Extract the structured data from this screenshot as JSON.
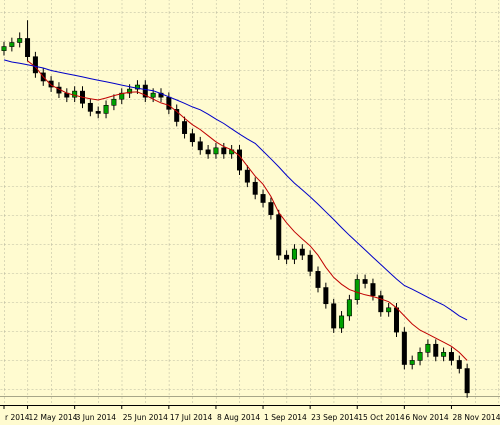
{
  "chart_data": {
    "type": "candlestick",
    "categories": [
      "r 2014",
      null,
      null,
      "12 May 2014",
      null,
      null,
      null,
      null,
      null,
      "3 Jun 2014",
      null,
      null,
      null,
      null,
      null,
      "25 Jun 2014",
      null,
      null,
      null,
      null,
      null,
      "17 Jul 2014",
      null,
      null,
      null,
      null,
      null,
      "8 Aug 2014",
      null,
      null,
      null,
      null,
      null,
      "1 Sep 2014",
      null,
      null,
      null,
      null,
      null,
      "23 Sep 2014",
      null,
      null,
      null,
      null,
      null,
      "15 Oct 2014",
      null,
      null,
      null,
      null,
      null,
      "6 Nov 2014",
      null,
      null,
      null,
      null,
      null,
      "28 Nov 2014",
      null,
      null
    ],
    "open": [
      87.5,
      88.5,
      89.5,
      90.5,
      86,
      82,
      80,
      78.5,
      77,
      76,
      77.5,
      74.5,
      72.5,
      72,
      74,
      75.5,
      77,
      78,
      79,
      76,
      77,
      76,
      73,
      70,
      67,
      65,
      63,
      62,
      63.5,
      62,
      63,
      58,
      55,
      52,
      50,
      47,
      37,
      36,
      38.5,
      37,
      33,
      29,
      25,
      19,
      22,
      26,
      31,
      30,
      27,
      23,
      24,
      18,
      10,
      11,
      13,
      15,
      12,
      13,
      11,
      9
    ],
    "high": [
      89.7,
      90.7,
      92,
      95,
      87.2,
      83.2,
      81.2,
      79.7,
      78.2,
      78.7,
      78.7,
      75.7,
      73.7,
      75.2,
      76.7,
      78.2,
      79.2,
      80.2,
      80.2,
      78.2,
      78.2,
      77.2,
      74.2,
      71.2,
      68.2,
      66.2,
      64.2,
      64.7,
      64.7,
      64.2,
      64.2,
      59.2,
      56.2,
      53.2,
      51.2,
      48.2,
      38.2,
      39.7,
      39.7,
      38.2,
      34.2,
      30.2,
      26.2,
      23.2,
      27.2,
      32.2,
      32.2,
      31.2,
      28.2,
      25.2,
      25.2,
      19.2,
      12.2,
      14.2,
      16.2,
      16.2,
      14.2,
      14.2,
      12.2,
      10.2
    ],
    "low": [
      86.3,
      87.3,
      88.3,
      84.8,
      80.8,
      78.8,
      77.3,
      75.8,
      74.8,
      74.8,
      73.3,
      71.3,
      70.8,
      70.8,
      72.8,
      74.3,
      75.8,
      76.8,
      74.8,
      74.8,
      74.8,
      71.8,
      68.8,
      65.8,
      63.8,
      61.8,
      60.8,
      60.8,
      60.8,
      60.8,
      56.8,
      53.8,
      50.8,
      48.8,
      45.8,
      35.8,
      34.8,
      34.8,
      35.8,
      31.8,
      27.8,
      23.8,
      17.8,
      17.8,
      20.8,
      24.8,
      28.8,
      25.8,
      21.8,
      21.8,
      16.8,
      8.8,
      8.8,
      9.8,
      11.8,
      10.8,
      10.8,
      9.8,
      7.8,
      1.8
    ],
    "close": [
      88.5,
      89.5,
      90.5,
      86,
      82,
      80,
      78.5,
      77,
      76,
      77.5,
      74.5,
      72.5,
      72,
      74,
      75.5,
      77,
      78,
      79,
      76,
      77,
      76,
      73,
      70,
      67,
      65,
      63,
      62,
      63.5,
      62,
      63,
      58,
      55,
      52,
      50,
      47,
      37,
      36,
      38.5,
      37,
      33,
      29,
      25,
      19,
      22,
      26,
      31,
      30,
      27,
      23,
      24,
      18,
      10,
      11,
      13,
      15,
      12,
      13,
      11,
      9,
      3
    ],
    "up_color": "#00a000",
    "down_color": "#000000",
    "lines": [
      {
        "color": "#c00000",
        "values": [
          null,
          null,
          null,
          85,
          83.5,
          81,
          79,
          78,
          77,
          76.5,
          76,
          75.6,
          75.3,
          75.8,
          76.4,
          76.9,
          77.2,
          77.3,
          76.5,
          75.5,
          74.6,
          74,
          72.5,
          70.8,
          69.2,
          68,
          66.5,
          65,
          63.8,
          63,
          61.5,
          59,
          56.5,
          54.5,
          51.5,
          47.5,
          45,
          42.8,
          41,
          39.3,
          37,
          34,
          31.5,
          29.8,
          28.5,
          27.8,
          27.2,
          26.8,
          26.2,
          25.5,
          24,
          22,
          20,
          18.5,
          17.5,
          16.5,
          15.5,
          14.5,
          13,
          11
        ]
      },
      {
        "color": "#0000c8",
        "values": [
          85.2,
          84.7,
          84.4,
          84,
          83.6,
          83.2,
          82.6,
          82.2,
          81.8,
          81.4,
          81,
          80.6,
          80.2,
          79.8,
          79.4,
          79,
          78.6,
          78.2,
          77.9,
          77.6,
          76.9,
          76.1,
          75.3,
          74.5,
          73.6,
          72.9,
          71.8,
          70.6,
          69.5,
          68.2,
          66.9,
          65.7,
          64.6,
          62.7,
          60.8,
          58.8,
          56.7,
          54.8,
          53.1,
          51.4,
          49.6,
          47.7,
          45.8,
          43.8,
          41.9,
          40.1,
          38.3,
          36.5,
          34.7,
          32.9,
          31.1,
          29.5,
          28.6,
          27.6,
          26.6,
          25.6,
          24.7,
          23.4,
          22,
          21
        ]
      }
    ],
    "ylim": [
      0,
      100
    ],
    "grid": true
  }
}
